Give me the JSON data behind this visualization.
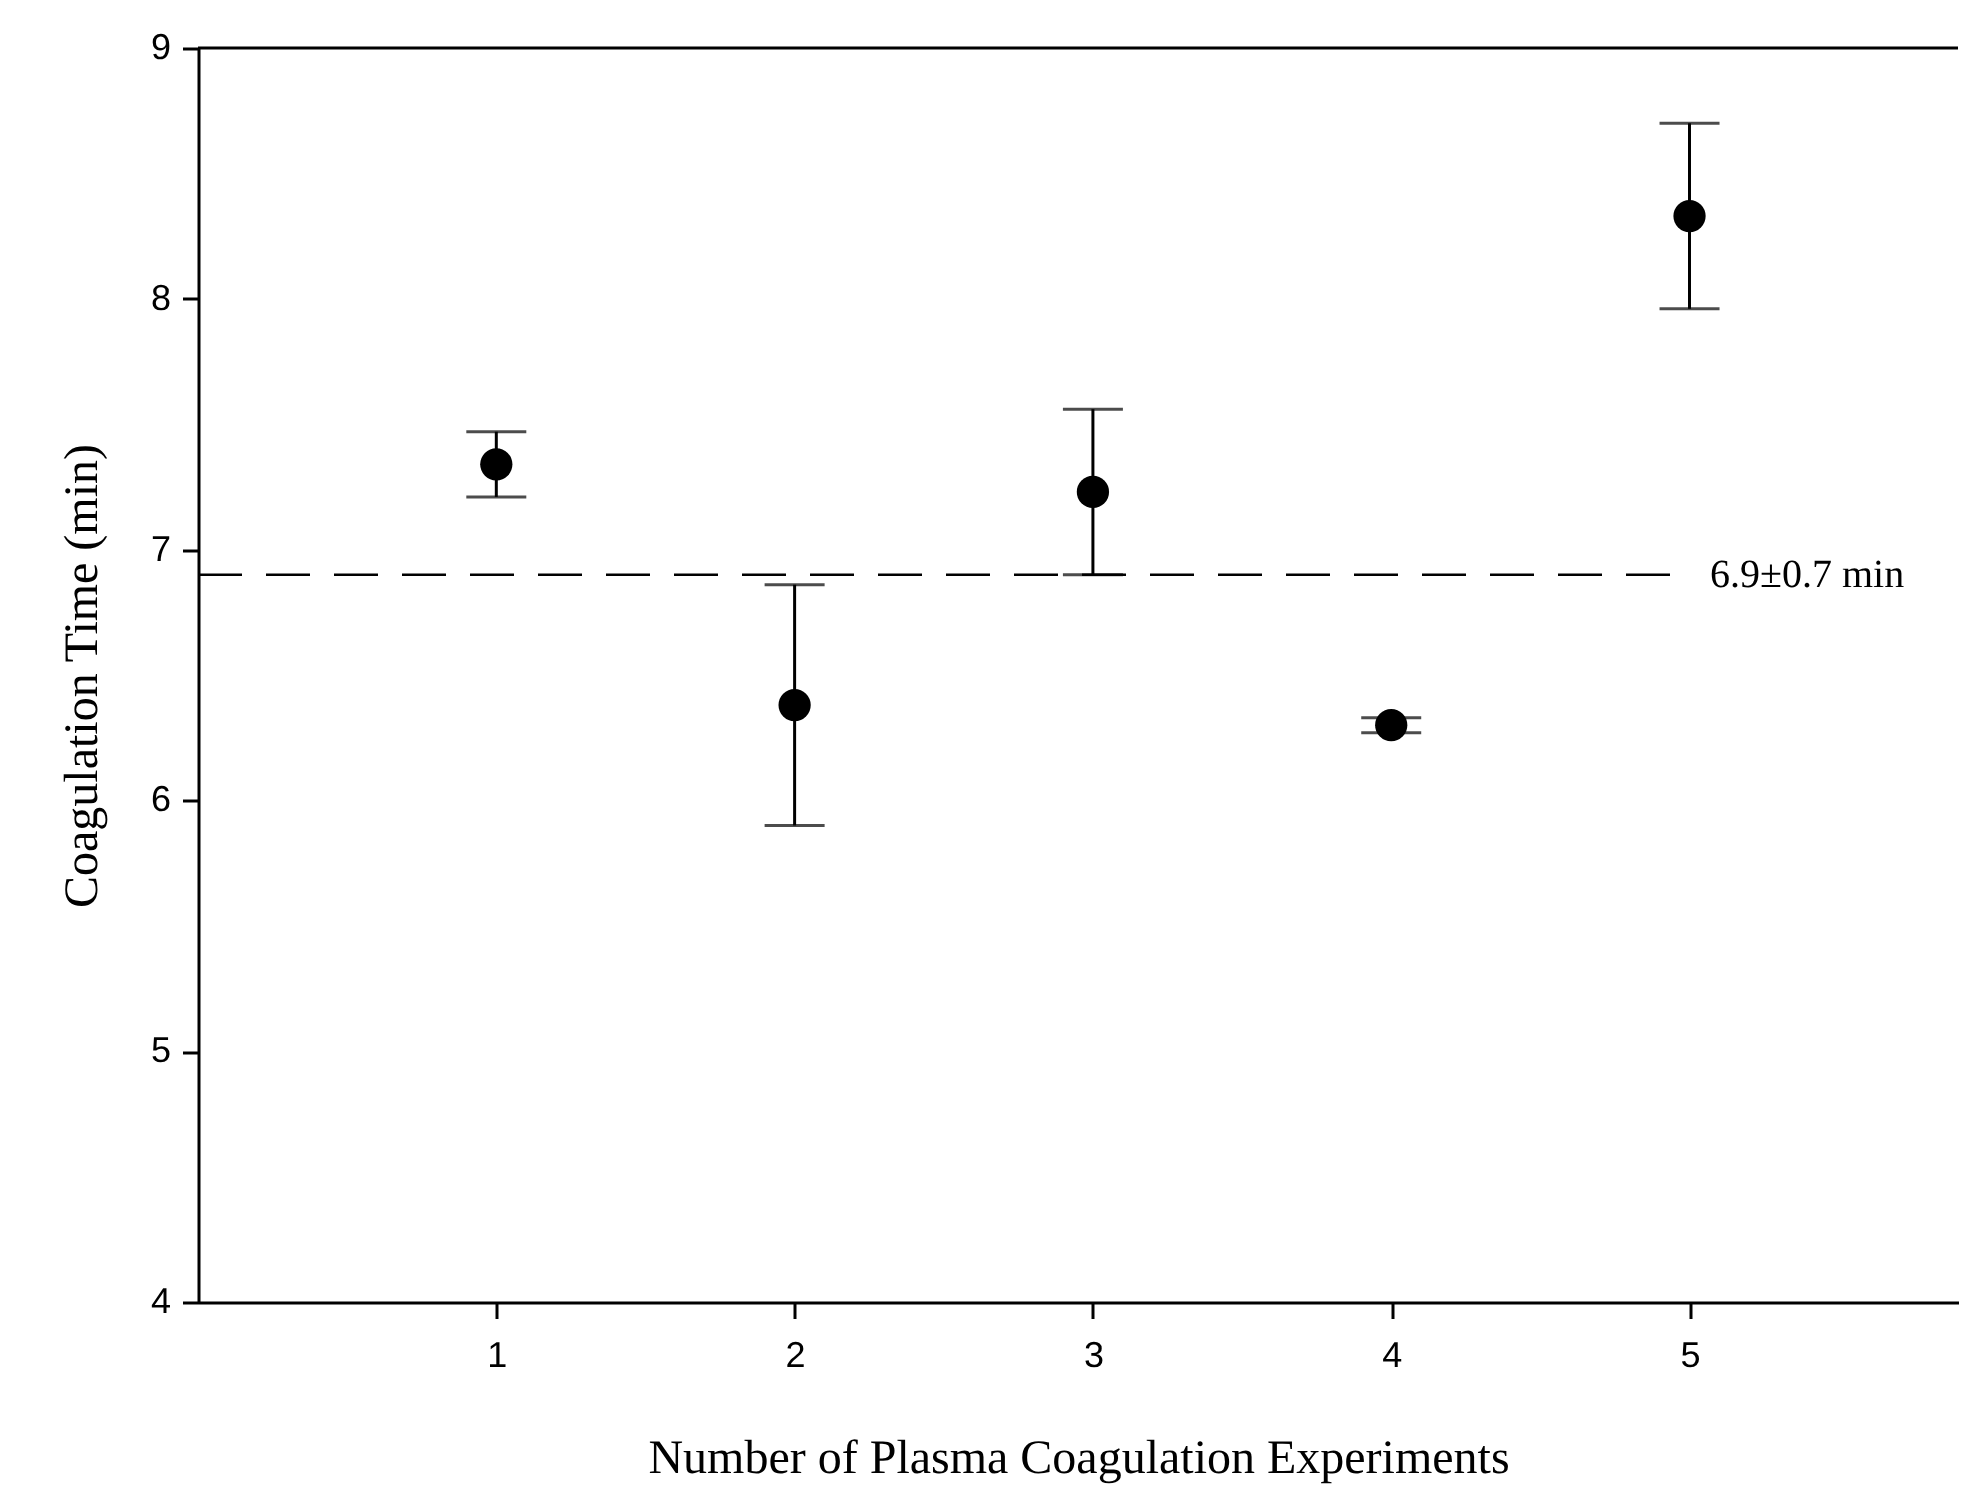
{
  "chart_data": {
    "type": "scatter",
    "xlabel": "Number of Plasma Coagulation Experiments",
    "ylabel": "Coagulation Time (min)",
    "x": [
      1,
      2,
      3,
      4,
      5
    ],
    "series": [
      {
        "color": "#000000",
        "values": [
          7.34,
          6.38,
          7.23,
          6.3,
          8.33
        ],
        "errors": [
          0.13,
          0.48,
          0.33,
          0.03,
          0.37
        ]
      }
    ],
    "xlim": [
      0,
      5.9
    ],
    "xticks": [
      1,
      2,
      3,
      4,
      5
    ],
    "ylim": [
      4,
      9
    ],
    "yticks": [
      4,
      5,
      6,
      7,
      8,
      9
    ],
    "ref_lines": [
      {
        "axis": "y",
        "value": 6.9,
        "label": "6.9±0.7 min",
        "line_style": "dashed",
        "color": "#000000"
      }
    ],
    "marker": "circle",
    "grid": false
  }
}
